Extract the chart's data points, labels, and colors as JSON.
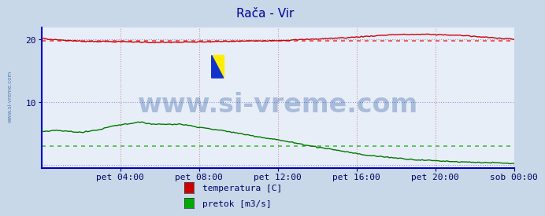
{
  "title": "Rača - Vir",
  "title_color": "#000099",
  "title_fontsize": 11,
  "bg_color": "#c8d8e8",
  "plot_bg_color": "#e8eef8",
  "grid_color_h": "#9898cc",
  "grid_color_v": "#cc9898",
  "ylabel_ticks": [
    10,
    20
  ],
  "ylim": [
    -0.5,
    22
  ],
  "xlim": [
    0,
    288
  ],
  "xtick_positions": [
    48,
    96,
    144,
    192,
    240,
    288
  ],
  "xtick_labels": [
    "pet 04:00",
    "pet 08:00",
    "pet 12:00",
    "pet 16:00",
    "pet 20:00",
    "sob 00:00"
  ],
  "watermark_text": "www.si-vreme.com",
  "watermark_color": "#1a4a9a",
  "watermark_alpha": 0.3,
  "watermark_fontsize": 24,
  "sidebar_text": "www.si-vreme.com",
  "sidebar_color": "#3060a0",
  "legend_labels": [
    "temperatura [C]",
    "pretok [m3/s]"
  ],
  "legend_colors": [
    "#cc0000",
    "#00aa00"
  ],
  "temp_color": "#cc0000",
  "flow_color": "#007700",
  "temp_avg_line": 19.85,
  "temp_avg_color": "#ee4444",
  "flow_avg_line": 3.0,
  "flow_avg_color": "#44bb44",
  "axis_color": "#0000cc",
  "bottom_axis_color": "#0000bb",
  "tick_color": "#000066",
  "tick_fontsize": 8,
  "arrow_color": "#cc0000"
}
